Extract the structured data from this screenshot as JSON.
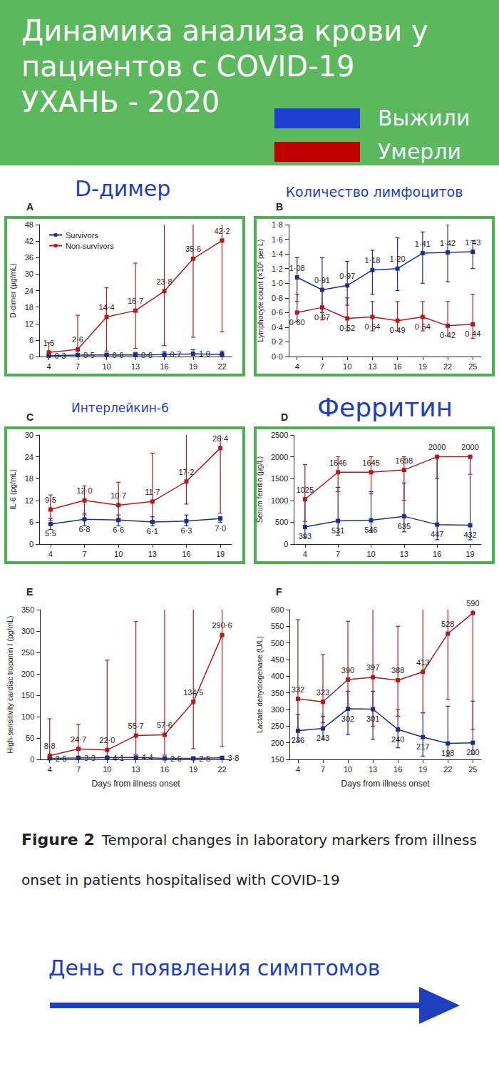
{
  "header": {
    "title_lines": [
      "Динамика анализа крови у",
      "пациентов с COVID-19",
      "УХАНЬ - 2020"
    ],
    "legend": [
      {
        "label": "Выжили",
        "color": "#1f3fd0"
      },
      {
        "label": "Умерли",
        "color": "#c00000"
      }
    ]
  },
  "chart_data": [
    {
      "panel": "A",
      "title": "D-димер",
      "type": "line",
      "y_label": "D-dimer (μg/mL)",
      "x": [
        4,
        7,
        10,
        13,
        16,
        19,
        22
      ],
      "xlim": [
        3,
        23
      ],
      "xticks": [
        4,
        7,
        10,
        13,
        16,
        19,
        22
      ],
      "ylim": [
        0,
        48
      ],
      "yticks": [
        0,
        6,
        12,
        18,
        24,
        30,
        36,
        42,
        48
      ],
      "grid": false,
      "legend": "upper left",
      "marker": "square",
      "data_labels": true,
      "series": [
        {
          "name": "Survivors",
          "color": "#1c2f8c",
          "values": [
            0.3,
            0.5,
            0.6,
            0.6,
            0.7,
            1.0,
            0.8
          ],
          "value_labels": [
            "0·3",
            "0·5",
            "0·6",
            "0·6",
            "0·7",
            "1·0",
            null
          ],
          "error_low": [
            0.2,
            0.3,
            0.4,
            0.4,
            0.4,
            0.5,
            0.4
          ],
          "error_high": [
            0.6,
            1.0,
            1.2,
            1.5,
            1.8,
            2.5,
            2.0
          ]
        },
        {
          "name": "Non-survivors",
          "color": "#b31b1b",
          "values": [
            1.5,
            2.6,
            14.4,
            16.7,
            23.8,
            35.6,
            42.2
          ],
          "value_labels": [
            "1·5",
            "2·6",
            "14·4",
            "16·7",
            "23·8",
            "35·6",
            "42·2"
          ],
          "error_low": [
            0.5,
            0.8,
            2.0,
            3.0,
            4.0,
            7.0,
            9.0
          ],
          "error_high": [
            5.0,
            15.0,
            25.0,
            34.0,
            52.0,
            52.0,
            52.0
          ]
        }
      ]
    },
    {
      "panel": "B",
      "title": "Количество лимфоцитов",
      "type": "line",
      "y_label": "Lymphocyte count (×10⁹ per L)",
      "x": [
        4,
        7,
        10,
        13,
        16,
        19,
        22,
        25
      ],
      "xlim": [
        3,
        26
      ],
      "xticks": [
        4,
        7,
        10,
        13,
        16,
        19,
        22,
        25
      ],
      "ylim": [
        0,
        1.8
      ],
      "yticks": [
        {
          "value": 0,
          "label": "0·0"
        },
        {
          "value": 0.2,
          "label": "0·2"
        },
        {
          "value": 0.4,
          "label": "0·4"
        },
        {
          "value": 0.6,
          "label": "0·6"
        },
        {
          "value": 0.8,
          "label": "0·8"
        },
        {
          "value": 1.0,
          "label": "1·0"
        },
        {
          "value": 1.2,
          "label": "1·2"
        },
        {
          "value": 1.4,
          "label": "1·4"
        },
        {
          "value": 1.6,
          "label": "1·6"
        },
        {
          "value": 1.8,
          "label": "1·8"
        }
      ],
      "grid": false,
      "marker": "square",
      "data_labels": true,
      "series": [
        {
          "color": "#1c2f8c",
          "values": [
            1.08,
            0.91,
            0.97,
            1.18,
            1.2,
            1.41,
            1.42,
            1.43
          ],
          "value_labels": [
            "1·08",
            "0·91",
            "0·97",
            "1·18",
            "1·20",
            "1·41",
            "1·42",
            "1·43"
          ],
          "error_low": [
            0.75,
            0.6,
            0.7,
            0.85,
            0.9,
            1.0,
            1.02,
            1.2
          ],
          "error_high": [
            1.35,
            1.35,
            1.3,
            1.45,
            1.62,
            1.7,
            1.8,
            1.58
          ]
        },
        {
          "color": "#b31b1b",
          "values": [
            0.6,
            0.67,
            0.52,
            0.54,
            0.49,
            0.54,
            0.42,
            0.44
          ],
          "value_labels": [
            "0·60",
            "0·67",
            "0·52",
            "0·54",
            "0·49",
            "0·54",
            "0·42",
            "0·44"
          ],
          "error_low": [
            0.48,
            0.5,
            0.35,
            0.35,
            0.35,
            0.35,
            0.28,
            0.25
          ],
          "error_high": [
            0.85,
            0.9,
            0.8,
            0.75,
            0.75,
            0.75,
            0.75,
            0.85
          ]
        }
      ]
    },
    {
      "panel": "C",
      "title": "Интерлейкин-6",
      "type": "line",
      "y_label": "IL-6 (pg/mL)",
      "x": [
        4,
        7,
        10,
        13,
        16,
        19
      ],
      "xlim": [
        3,
        20
      ],
      "xticks": [
        4,
        7,
        10,
        13,
        16,
        19
      ],
      "ylim": [
        0,
        30
      ],
      "yticks": [
        0,
        6,
        12,
        18,
        24,
        30
      ],
      "grid": false,
      "marker": "square",
      "data_labels": true,
      "series": [
        {
          "color": "#1c2f8c",
          "values": [
            5.5,
            6.8,
            6.6,
            6.1,
            6.3,
            7.0
          ],
          "value_labels": [
            "5·5",
            "6·8",
            "6·6",
            "6·1",
            "6·3",
            "7·0"
          ],
          "error_low": [
            4,
            5,
            5,
            5,
            5,
            6
          ],
          "error_high": [
            7,
            8.5,
            8,
            7.5,
            8,
            7.5
          ]
        },
        {
          "color": "#b31b1b",
          "values": [
            9.5,
            12.0,
            10.7,
            11.7,
            17.2,
            26.4
          ],
          "value_labels": [
            "9·5",
            "12·0",
            "10·7",
            "11·7",
            "17·2",
            "26·4"
          ],
          "error_low": [
            6.5,
            8,
            7,
            6,
            11,
            8.5
          ],
          "error_high": [
            13.5,
            16,
            17,
            25,
            31,
            32
          ]
        }
      ]
    },
    {
      "panel": "D",
      "title": "Ферритин",
      "type": "line",
      "y_label": "Serum ferritin (μg/L)",
      "x": [
        4,
        7,
        10,
        13,
        16,
        19
      ],
      "xlim": [
        3,
        20
      ],
      "xticks": [
        4,
        7,
        10,
        13,
        16,
        19
      ],
      "ylim": [
        0,
        2500
      ],
      "yticks": [
        0,
        500,
        1000,
        1500,
        2000,
        2500
      ],
      "grid": false,
      "marker": "square",
      "data_labels": true,
      "series": [
        {
          "color": "#1c2f8c",
          "values": [
            393,
            531,
            546,
            635,
            447,
            432
          ],
          "error_low": [
            150,
            200,
            270,
            280,
            100,
            100
          ],
          "error_high": [
            1000,
            1300,
            1200,
            1400,
            2000,
            2000
          ]
        },
        {
          "color": "#b31b1b",
          "values": [
            1025,
            1646,
            1645,
            1698,
            2000,
            2000
          ],
          "error_low": [
            520,
            1200,
            1150,
            1000,
            1500,
            1600
          ],
          "error_high": [
            1820,
            2000,
            2000,
            2000,
            2000,
            2000
          ]
        }
      ]
    },
    {
      "panel": "E",
      "type": "line",
      "y_label": "High-sensitivity cardiac troponin I (pg/mL)",
      "x_label": "Days from illness onset",
      "x": [
        4,
        7,
        10,
        13,
        16,
        19,
        22
      ],
      "xlim": [
        3,
        23
      ],
      "xticks": [
        4,
        7,
        10,
        13,
        16,
        19,
        22
      ],
      "ylim": [
        0,
        350
      ],
      "yticks": [
        0,
        50,
        100,
        150,
        200,
        250,
        300,
        350
      ],
      "grid": false,
      "marker": "square",
      "data_labels": true,
      "series": [
        {
          "color": "#1c2f8c",
          "values": [
            2.5,
            3.3,
            4.1,
            4.4,
            2.5,
            2.5,
            3.8
          ],
          "value_labels": [
            "2·5",
            "3·3",
            "4·1",
            "4·4",
            "2·5",
            "2·5",
            "3·8"
          ],
          "error_low": [
            1.5,
            2,
            2,
            2.5,
            1.5,
            1.5,
            2
          ],
          "error_high": [
            5,
            6,
            7,
            8,
            5,
            5,
            7
          ]
        },
        {
          "color": "#b31b1b",
          "values": [
            8.8,
            24.7,
            22.0,
            55.7,
            57.6,
            134.5,
            290.6
          ],
          "value_labels": [
            "8·8",
            "24·7",
            "22·0",
            "55·7",
            "57·6",
            "134·5",
            "290·6"
          ],
          "error_low": [
            3,
            8,
            6,
            12,
            10,
            25,
            30
          ],
          "error_high": [
            95,
            82,
            232,
            322,
            360,
            360,
            360
          ]
        }
      ]
    },
    {
      "panel": "F",
      "type": "line",
      "y_label": "Lactate dehydrogenase (U/L)",
      "x_label": "Days from illness onset",
      "x": [
        4,
        7,
        10,
        13,
        16,
        19,
        22,
        25
      ],
      "xlim": [
        3,
        26
      ],
      "xticks": [
        4,
        7,
        10,
        13,
        16,
        19,
        22,
        25
      ],
      "ylim": [
        150,
        600
      ],
      "yticks": [
        150,
        200,
        250,
        300,
        350,
        400,
        450,
        500,
        550,
        600
      ],
      "grid": false,
      "marker": "square",
      "data_labels": true,
      "series": [
        {
          "color": "#1c2f8c",
          "values": [
            236,
            243,
            302,
            301,
            240,
            217,
            198,
            200
          ],
          "error_low": [
            205,
            210,
            225,
            210,
            185,
            160,
            160,
            165
          ],
          "error_high": [
            285,
            280,
            355,
            355,
            300,
            290,
            310,
            325
          ]
        },
        {
          "color": "#b31b1b",
          "values": [
            332,
            323,
            390,
            397,
            388,
            413,
            528,
            590
          ],
          "error_low": [
            240,
            260,
            300,
            250,
            280,
            290,
            330,
            240
          ],
          "error_high": [
            570,
            465,
            565,
            620,
            550,
            620,
            620,
            620
          ]
        }
      ]
    }
  ],
  "caption": {
    "label": "Figure 2",
    "text": "Temporal changes in laboratory markers from illness onset in patients hospitalised with COVID-19"
  },
  "footer": "День с появления симптомов"
}
